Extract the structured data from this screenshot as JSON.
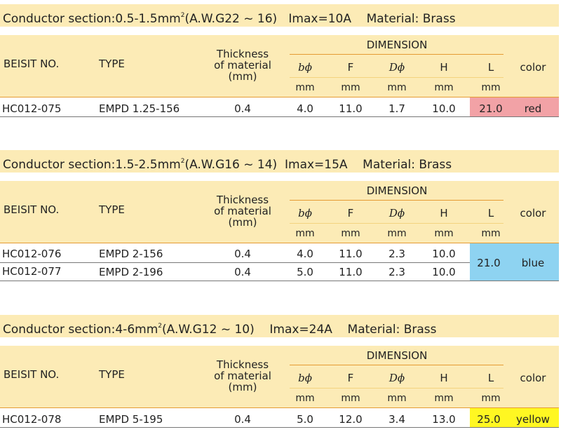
{
  "headers": {
    "beisit_no": "BEISIT NO.",
    "type": "TYPE",
    "thickness": [
      "Thickness",
      "of material",
      "(mm)"
    ],
    "dimension": "DIMENSION",
    "dims": [
      "bϕ",
      "F",
      "Dϕ",
      "H",
      "L"
    ],
    "unit": "mm",
    "color": "color"
  },
  "sections": [
    {
      "title_pre": "Conductor section:0.5-1.5mm",
      "title_sup": "2",
      "title_post": "(A.W.G22 ~ 16)   Imax=10A    Material: Brass",
      "rows": [
        {
          "no": "HC012-075",
          "type": "EMPD 1.25-156",
          "thickness": "0.4",
          "b": "4.0",
          "F": "11.0",
          "D": "1.7",
          "H": "10.0"
        }
      ],
      "L": "21.0",
      "color_name": "red",
      "swatch": "#f2a2a6"
    },
    {
      "title_pre": "Conductor section:1.5-2.5mm",
      "title_sup": "2",
      "title_post": "(A.W.G16 ~ 14)  Imax=15A    Material: Brass",
      "rows": [
        {
          "no": "HC012-076",
          "type": "EMPD 2-156",
          "thickness": "0.4",
          "b": "4.0",
          "F": "11.0",
          "D": "2.3",
          "H": "10.0"
        },
        {
          "no": "HC012-077",
          "type": "EMPD 2-196",
          "thickness": "0.4",
          "b": "5.0",
          "F": "11.0",
          "D": "2.3",
          "H": "10.0"
        }
      ],
      "L": "21.0",
      "color_name": "blue",
      "swatch": "#8ed3f1"
    },
    {
      "title_pre": "Conductor section:4-6mm",
      "title_sup": "2",
      "title_post": "(A.W.G12 ~ 10)    Imax=24A    Material: Brass",
      "rows": [
        {
          "no": "HC012-078",
          "type": "EMPD 5-195",
          "thickness": "0.4",
          "b": "5.0",
          "F": "12.0",
          "D": "3.4",
          "H": "13.0"
        }
      ],
      "L": "25.0",
      "color_name": "yellow",
      "swatch": "#fff722"
    }
  ]
}
